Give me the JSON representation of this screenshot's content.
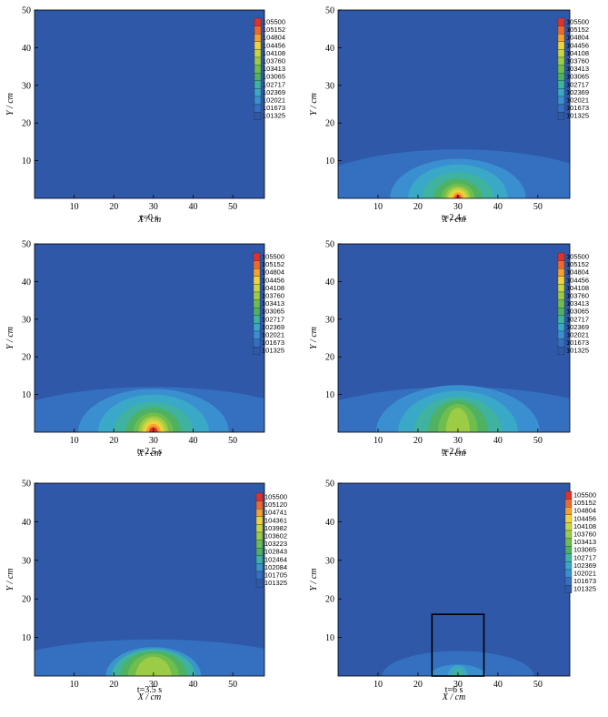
{
  "chart_data": [
    {
      "type": "heatmap",
      "caption": "t=0 s",
      "xlabel": "X / cm",
      "ylabel": "Y / cm",
      "xlim": [
        0,
        58
      ],
      "ylim": [
        0,
        50
      ],
      "xticks": [
        10,
        20,
        30,
        40,
        50
      ],
      "yticks": [
        10,
        20,
        30,
        40,
        50
      ],
      "levels": [
        105500,
        105152,
        104804,
        104456,
        104108,
        103760,
        103413,
        103065,
        102717,
        102369,
        102021,
        101673,
        101325
      ],
      "contours": [],
      "box": null
    },
    {
      "type": "heatmap",
      "caption": "t=2.4 s",
      "xlabel": "X / cm",
      "ylabel": "Y / cm",
      "xlim": [
        0,
        58
      ],
      "ylim": [
        0,
        50
      ],
      "xticks": [
        10,
        20,
        30,
        40,
        50
      ],
      "yticks": [
        10,
        20,
        30,
        40,
        50
      ],
      "levels": [
        105500,
        105152,
        104804,
        104456,
        104108,
        103760,
        103413,
        103065,
        102717,
        102369,
        102021,
        101673,
        101325
      ],
      "contours": [
        {
          "level": 11,
          "cx": 30,
          "rx": 40,
          "ry": 13
        },
        {
          "level": 10,
          "cx": 30,
          "rx": 17,
          "ry": 10.5
        },
        {
          "level": 9,
          "cx": 30,
          "rx": 12.5,
          "ry": 9
        },
        {
          "level": 8,
          "cx": 30,
          "rx": 9,
          "ry": 7
        },
        {
          "level": 7,
          "cx": 30,
          "rx": 6,
          "ry": 5.2
        },
        {
          "level": 6,
          "cx": 30,
          "rx": 4.2,
          "ry": 4
        },
        {
          "level": 5,
          "cx": 30,
          "rx": 3.2,
          "ry": 3.2
        },
        {
          "level": 4,
          "cx": 30,
          "rx": 2.5,
          "ry": 2.6
        },
        {
          "level": 3,
          "cx": 30,
          "rx": 1.9,
          "ry": 2.1
        },
        {
          "level": 2,
          "cx": 30,
          "rx": 1.4,
          "ry": 1.6
        },
        {
          "level": 0,
          "cx": 30,
          "rx": 0.8,
          "ry": 1.0
        }
      ],
      "box": null
    },
    {
      "type": "heatmap",
      "caption": "t=2.5 s",
      "xlabel": "X / cm",
      "ylabel": "Y / cm",
      "xlim": [
        0,
        58
      ],
      "ylim": [
        0,
        50
      ],
      "xticks": [
        10,
        20,
        30,
        40,
        50
      ],
      "yticks": [
        10,
        20,
        30,
        40,
        50
      ],
      "levels": [
        105500,
        105152,
        104804,
        104456,
        104108,
        103760,
        103413,
        103065,
        102717,
        102369,
        102021,
        101673,
        101325
      ],
      "contours": [
        {
          "level": 11,
          "cx": 30,
          "rx": 42,
          "ry": 12
        },
        {
          "level": 10,
          "cx": 30,
          "rx": 19,
          "ry": 11.5
        },
        {
          "level": 9,
          "cx": 30,
          "rx": 14,
          "ry": 10
        },
        {
          "level": 8,
          "cx": 30,
          "rx": 10,
          "ry": 8
        },
        {
          "level": 7,
          "cx": 30,
          "rx": 7,
          "ry": 6.5
        },
        {
          "level": 6,
          "cx": 30,
          "rx": 5,
          "ry": 5.2
        },
        {
          "level": 5,
          "cx": 30,
          "rx": 3.8,
          "ry": 4.3
        },
        {
          "level": 4,
          "cx": 30,
          "rx": 3,
          "ry": 3.6
        },
        {
          "level": 3,
          "cx": 30,
          "rx": 2.4,
          "ry": 2.9
        },
        {
          "level": 2,
          "cx": 30,
          "rx": 1.8,
          "ry": 2.2
        },
        {
          "level": 0,
          "cx": 30,
          "rx": 1.1,
          "ry": 1.4
        }
      ],
      "box": null
    },
    {
      "type": "heatmap",
      "caption": "t=2.6 s",
      "xlabel": "X / cm",
      "ylabel": "Y / cm",
      "xlim": [
        0,
        58
      ],
      "ylim": [
        0,
        50
      ],
      "xticks": [
        10,
        20,
        30,
        40,
        50
      ],
      "yticks": [
        10,
        20,
        30,
        40,
        50
      ],
      "levels": [
        105500,
        105152,
        104804,
        104456,
        104108,
        103760,
        103413,
        103065,
        102717,
        102369,
        102021,
        101673,
        101325
      ],
      "contours": [
        {
          "level": 11,
          "cx": 30,
          "rx": 42,
          "ry": 12
        },
        {
          "level": 10,
          "cx": 30,
          "rx": 20.5,
          "ry": 12.5
        },
        {
          "level": 9,
          "cx": 30,
          "rx": 15,
          "ry": 11
        },
        {
          "level": 8,
          "cx": 30,
          "rx": 11,
          "ry": 9.5
        },
        {
          "level": 7,
          "cx": 30,
          "rx": 7.5,
          "ry": 8.5
        },
        {
          "level": 6,
          "cx": 30,
          "rx": 5,
          "ry": 7.5
        },
        {
          "level": 5,
          "cx": 30,
          "rx": 3,
          "ry": 6.5
        }
      ],
      "box": null
    },
    {
      "type": "heatmap",
      "caption": "t=3.5 s",
      "xlabel": "X / cm",
      "ylabel": "Y / cm",
      "xlim": [
        0,
        58
      ],
      "ylim": [
        0,
        50
      ],
      "xticks": [
        10,
        20,
        30,
        40,
        50
      ],
      "yticks": [
        10,
        20,
        30,
        40,
        50
      ],
      "levels": [
        105500,
        105120,
        104741,
        104361,
        103982,
        103602,
        103223,
        102843,
        102464,
        102084,
        101705,
        101325
      ],
      "contours": [
        {
          "level": 10,
          "cx": 30,
          "rx": 42,
          "ry": 9.5
        },
        {
          "level": 9,
          "cx": 30,
          "rx": 12,
          "ry": 7.5
        },
        {
          "level": 8,
          "cx": 30,
          "rx": 10.5,
          "ry": 7
        },
        {
          "level": 7,
          "cx": 30,
          "rx": 8.5,
          "ry": 6.5
        },
        {
          "level": 6,
          "cx": 30,
          "rx": 6.5,
          "ry": 5.8
        },
        {
          "level": 5,
          "cx": 30,
          "rx": 4.5,
          "ry": 5
        }
      ],
      "box": null
    },
    {
      "type": "heatmap",
      "caption": "t=6 s",
      "xlabel": "X / cm",
      "ylabel": "Y / cm",
      "xlim": [
        0,
        58
      ],
      "ylim": [
        0,
        50
      ],
      "xticks": [
        10,
        20,
        30,
        40,
        50
      ],
      "yticks": [
        10,
        20,
        30,
        40,
        50
      ],
      "levels": [
        105500,
        105152,
        104804,
        104456,
        104108,
        103760,
        103413,
        103065,
        102717,
        102369,
        102021,
        101673,
        101325
      ],
      "contours": [
        {
          "level": 11,
          "cx": 30,
          "rx": 19,
          "ry": 6.5
        },
        {
          "level": 10,
          "cx": 30,
          "rx": 7,
          "ry": 3
        },
        {
          "level": 9,
          "cx": 30,
          "rx": 2.5,
          "ry": 2.8
        },
        {
          "level": 8,
          "cx": 30,
          "rx": 1.6,
          "ry": 2.0
        }
      ],
      "box": {
        "x0": 23.5,
        "x1": 36.5,
        "y0": 0,
        "y1": 16
      }
    }
  ],
  "colors": {
    "background_level": "#2f58a8",
    "palette13": [
      "#e2302c",
      "#ef6a2a",
      "#f6a12c",
      "#f2d23a",
      "#c9d443",
      "#9ccb45",
      "#6fbd4c",
      "#4fb263",
      "#3fb3a0",
      "#3aa8c7",
      "#3a8fd0",
      "#3570c0",
      "#2f58a8"
    ],
    "palette12": [
      "#e2302c",
      "#ef6a2a",
      "#f6a12c",
      "#f2d23a",
      "#c9d443",
      "#9ccb45",
      "#6fbd4c",
      "#4fb263",
      "#3fb3a0",
      "#3a95cc",
      "#3570c0",
      "#2f58a8"
    ]
  }
}
